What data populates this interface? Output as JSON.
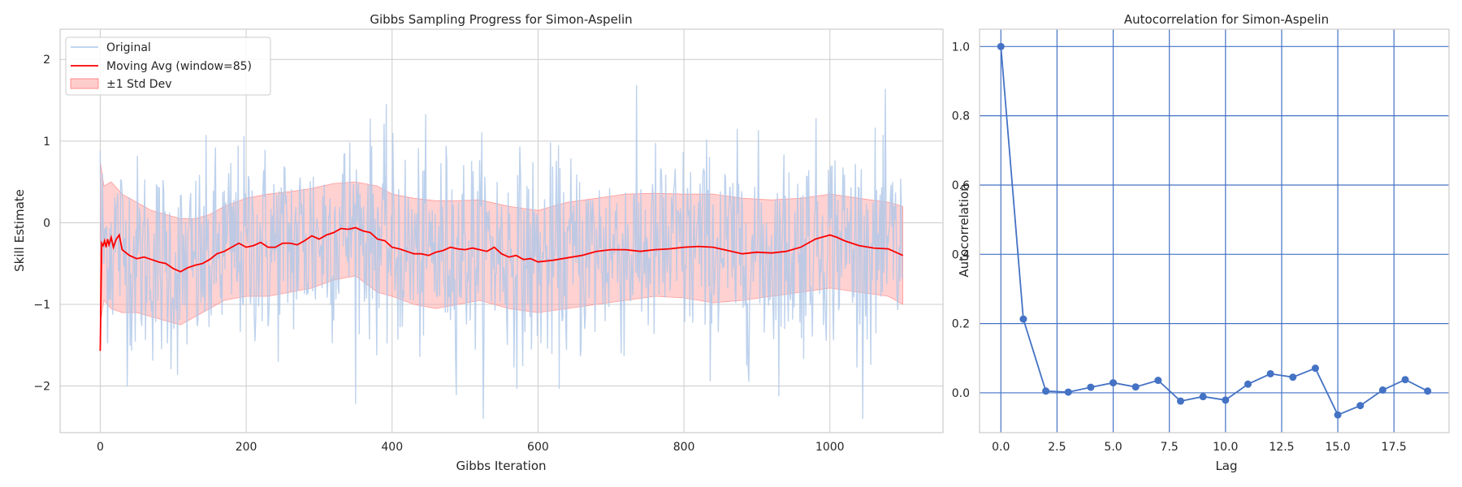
{
  "chart_data": [
    {
      "type": "line",
      "title": "Gibbs Sampling Progress for Simon-Aspelin",
      "xlabel": "Gibbs Iteration",
      "ylabel": "Skill Estimate",
      "xlim": [
        -55,
        1155
      ],
      "ylim": [
        -2.57,
        2.37
      ],
      "xticks": [
        0,
        200,
        400,
        600,
        800,
        1000
      ],
      "yticks": [
        -2,
        -1,
        0,
        1,
        2
      ],
      "ytick_labels": [
        "−2",
        "−1",
        "0",
        "1",
        "2"
      ],
      "grid": true,
      "legend_position": "top-left",
      "legend": [
        "Original",
        "Moving Avg (window=85)",
        "±1 Std Dev"
      ],
      "colors": {
        "original": "#aec7e8",
        "moving_avg": "#ff0000",
        "std_fill": "#ff9999",
        "grid": "#cccccc",
        "spine": "#cccccc"
      },
      "n_iterations": 1100,
      "series": [
        {
          "name": "Moving Avg (window=85)",
          "x": [
            0,
            2,
            4,
            6,
            8,
            10,
            12,
            15,
            18,
            22,
            26,
            30,
            40,
            50,
            60,
            70,
            80,
            90,
            100,
            110,
            120,
            130,
            140,
            150,
            160,
            170,
            180,
            190,
            200,
            210,
            220,
            230,
            240,
            250,
            260,
            270,
            280,
            290,
            300,
            310,
            320,
            330,
            340,
            350,
            360,
            370,
            380,
            390,
            400,
            410,
            420,
            430,
            440,
            450,
            460,
            470,
            480,
            490,
            500,
            510,
            520,
            530,
            540,
            550,
            560,
            570,
            580,
            590,
            600,
            620,
            640,
            660,
            680,
            700,
            720,
            740,
            760,
            780,
            800,
            820,
            840,
            860,
            880,
            900,
            920,
            940,
            960,
            980,
            1000,
            1010,
            1020,
            1030,
            1040,
            1060,
            1080,
            1100
          ],
          "y": [
            -1.57,
            -0.25,
            -0.28,
            -0.22,
            -0.3,
            -0.2,
            -0.27,
            -0.18,
            -0.3,
            -0.2,
            -0.15,
            -0.33,
            -0.4,
            -0.44,
            -0.42,
            -0.45,
            -0.48,
            -0.5,
            -0.56,
            -0.6,
            -0.55,
            -0.52,
            -0.5,
            -0.45,
            -0.38,
            -0.35,
            -0.3,
            -0.25,
            -0.3,
            -0.28,
            -0.24,
            -0.3,
            -0.3,
            -0.25,
            -0.25,
            -0.27,
            -0.22,
            -0.16,
            -0.2,
            -0.15,
            -0.12,
            -0.07,
            -0.08,
            -0.06,
            -0.1,
            -0.12,
            -0.2,
            -0.22,
            -0.3,
            -0.32,
            -0.35,
            -0.38,
            -0.38,
            -0.4,
            -0.36,
            -0.34,
            -0.3,
            -0.32,
            -0.33,
            -0.31,
            -0.33,
            -0.35,
            -0.3,
            -0.38,
            -0.42,
            -0.4,
            -0.45,
            -0.44,
            -0.48,
            -0.46,
            -0.43,
            -0.4,
            -0.35,
            -0.33,
            -0.33,
            -0.35,
            -0.33,
            -0.32,
            -0.3,
            -0.29,
            -0.3,
            -0.34,
            -0.38,
            -0.36,
            -0.37,
            -0.35,
            -0.3,
            -0.2,
            -0.15,
            -0.18,
            -0.22,
            -0.25,
            -0.28,
            -0.31,
            -0.32,
            -0.4
          ]
        },
        {
          "name": "±1 Std Dev",
          "x": [
            0,
            5,
            15,
            30,
            50,
            70,
            90,
            110,
            130,
            150,
            170,
            200,
            230,
            260,
            290,
            320,
            350,
            380,
            400,
            430,
            460,
            490,
            520,
            560,
            600,
            640,
            680,
            720,
            760,
            800,
            840,
            880,
            920,
            960,
            1000,
            1040,
            1080,
            1100
          ],
          "y_upper": [
            0.75,
            0.45,
            0.5,
            0.35,
            0.25,
            0.15,
            0.1,
            0.05,
            0.05,
            0.1,
            0.2,
            0.3,
            0.35,
            0.38,
            0.42,
            0.48,
            0.5,
            0.45,
            0.35,
            0.3,
            0.27,
            0.27,
            0.28,
            0.2,
            0.15,
            0.25,
            0.3,
            0.35,
            0.36,
            0.35,
            0.35,
            0.3,
            0.28,
            0.3,
            0.35,
            0.3,
            0.25,
            0.2
          ],
          "y_lower": [
            -1.25,
            -0.95,
            -1.05,
            -1.1,
            -1.1,
            -1.15,
            -1.2,
            -1.25,
            -1.15,
            -1.05,
            -0.95,
            -0.9,
            -0.9,
            -0.85,
            -0.8,
            -0.7,
            -0.65,
            -0.85,
            -0.9,
            -1.0,
            -1.05,
            -1.0,
            -0.95,
            -1.05,
            -1.1,
            -1.05,
            -1.0,
            -0.95,
            -0.9,
            -0.92,
            -0.98,
            -0.95,
            -0.9,
            -0.85,
            -0.8,
            -0.85,
            -0.9,
            -1.0
          ]
        }
      ]
    },
    {
      "type": "line",
      "title": "Autocorrelation for Simon-Aspelin",
      "xlabel": "Lag",
      "ylabel": "Autocorrelation",
      "xlim": [
        -0.95,
        19.95
      ],
      "ylim": [
        -0.115,
        1.05
      ],
      "xticks": [
        0.0,
        2.5,
        5.0,
        7.5,
        10.0,
        12.5,
        15.0,
        17.5
      ],
      "xtick_labels": [
        "0.0",
        "2.5",
        "5.0",
        "7.5",
        "10.0",
        "12.5",
        "15.0",
        "17.5"
      ],
      "yticks": [
        0.0,
        0.2,
        0.4,
        0.6,
        0.8,
        1.0
      ],
      "ytick_labels": [
        "0.0",
        "0.2",
        "0.4",
        "0.6",
        "0.8",
        "1.0"
      ],
      "grid": true,
      "colors": {
        "line": "#4472c4",
        "grid": "#4472c4",
        "spine": "#cccccc"
      },
      "x": [
        0,
        1,
        2,
        3,
        4,
        5,
        6,
        7,
        8,
        9,
        10,
        11,
        12,
        13,
        14,
        15,
        16,
        17,
        18,
        19
      ],
      "y": [
        1.0,
        0.213,
        0.005,
        0.002,
        0.016,
        0.029,
        0.017,
        0.036,
        -0.024,
        -0.011,
        -0.021,
        0.025,
        0.055,
        0.045,
        0.071,
        -0.064,
        -0.037,
        0.008,
        0.038,
        0.005
      ]
    }
  ]
}
